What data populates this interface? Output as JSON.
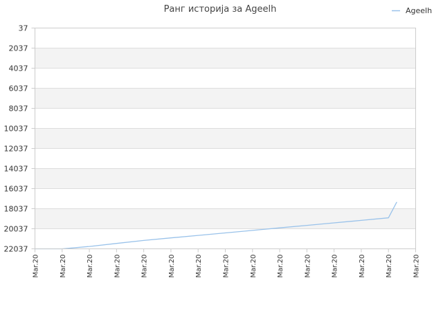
{
  "chart_data": {
    "type": "line",
    "title": "Ранг историја за Ageelh",
    "legend": {
      "position": "top-right",
      "entries": [
        "Ageelh"
      ]
    },
    "grid": true,
    "y_axis": {
      "inverted": true,
      "ylim": [
        37,
        22037
      ],
      "ticks": [
        "37",
        "2037",
        "4037",
        "6037",
        "8037",
        "10037",
        "12037",
        "14037",
        "16037",
        "18037",
        "20037",
        "22037"
      ]
    },
    "x_axis": {
      "ticks": [
        "Mar.20",
        "Mar.20",
        "Mar.20",
        "Mar.20",
        "Mar.20",
        "Mar.20",
        "Mar.20",
        "Mar.20",
        "Mar.20",
        "Mar.20",
        "Mar.20",
        "Mar.20",
        "Mar.20",
        "Mar.20",
        "Mar.20"
      ]
    },
    "series": [
      {
        "name": "Ageelh",
        "color": "#99c2ea",
        "x": [
          0,
          1,
          2,
          3,
          4,
          5,
          6,
          7,
          8,
          9,
          10,
          11,
          12,
          13,
          13.3
        ],
        "values": [
          22037,
          22037,
          21800,
          21500,
          21200,
          20950,
          20700,
          20450,
          20200,
          19950,
          19700,
          19450,
          19200,
          18950,
          17400
        ]
      }
    ]
  },
  "colors": {
    "band_fill": "#f3f3f3",
    "grid": "#dddddd",
    "axis": "#cccccc",
    "text": "#333333"
  }
}
